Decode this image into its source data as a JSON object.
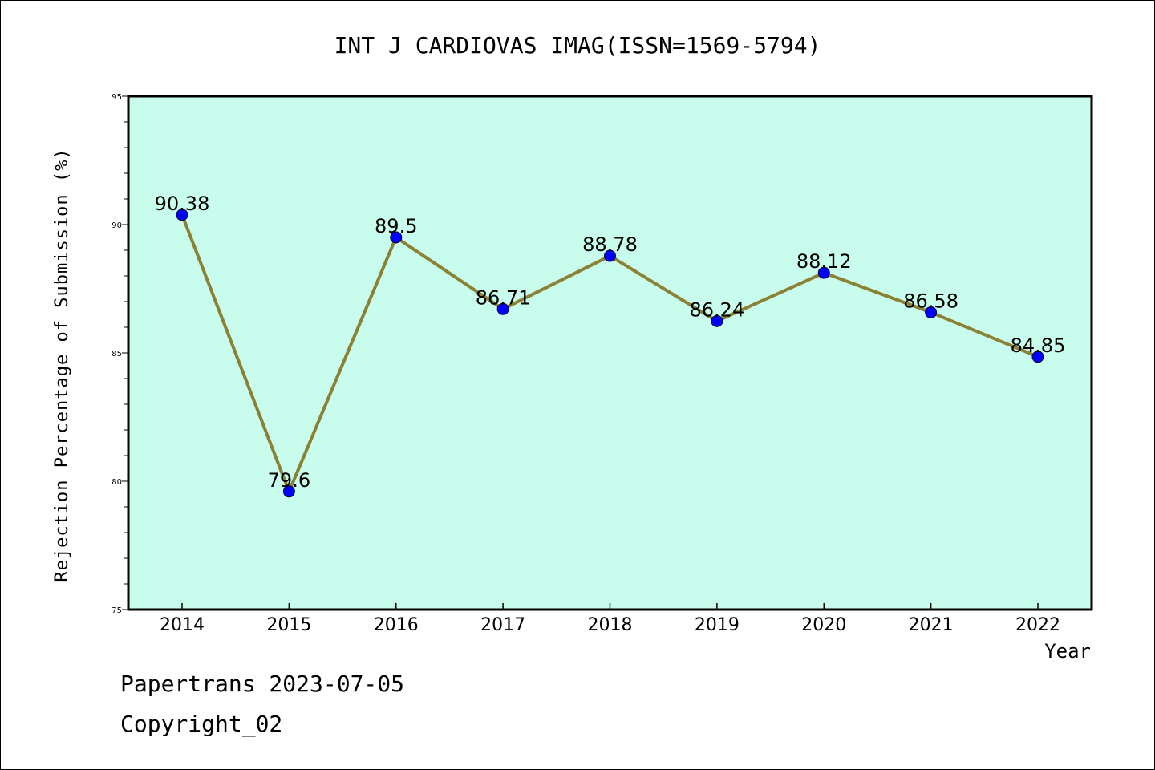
{
  "chart_data": {
    "type": "line",
    "title": "INT J CARDIOVAS IMAG(ISSN=1569-5794)",
    "xlabel": "Year",
    "ylabel": "Rejection Percentage of Submission (%)",
    "categories": [
      "2014",
      "2015",
      "2016",
      "2017",
      "2018",
      "2019",
      "2020",
      "2021",
      "2022"
    ],
    "series": [
      {
        "values": [
          90.38,
          79.6,
          89.5,
          86.71,
          88.78,
          86.24,
          88.12,
          86.58,
          84.85
        ]
      }
    ],
    "data_labels": [
      "90.38",
      "79.6",
      "89.5",
      "86.71",
      "88.78",
      "86.24",
      "88.12",
      "86.58",
      "84.85"
    ],
    "ylim": [
      75,
      95
    ],
    "y_ticks": [
      "75",
      "80",
      "85",
      "90",
      "95"
    ],
    "grid": false,
    "plot_background": "#c8fcec",
    "line_color": "#8b8134",
    "marker_color": "#0000ff"
  },
  "footer": {
    "line1": "Papertrans 2023-07-05",
    "line2": "Copyright_02"
  }
}
